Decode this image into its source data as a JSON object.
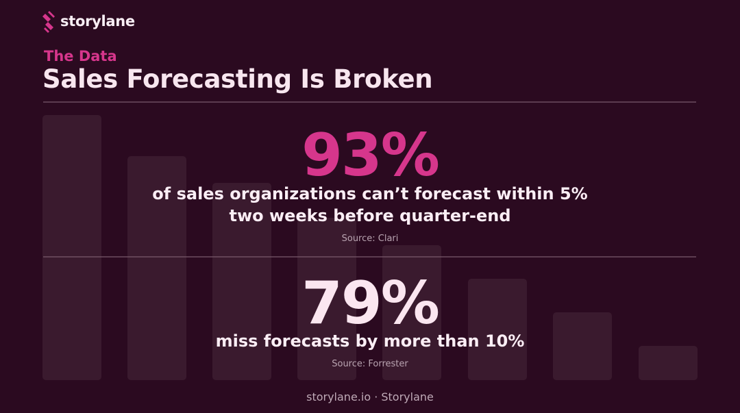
{
  "header": {
    "brand": "storylane",
    "eyebrow": "The Data",
    "title": "Sales Forecasting Is Broken"
  },
  "stats": [
    {
      "figure": "93%",
      "lines": [
        "of sales organizations can’t forecast within 5%",
        "two weeks before quarter-end"
      ],
      "source": "Source: Clari"
    },
    {
      "figure": "79%",
      "lines": [
        "miss forecasts by more than 10%"
      ],
      "source": "Source: Forrester"
    }
  ],
  "footer": "storylane.io · Storylane"
}
